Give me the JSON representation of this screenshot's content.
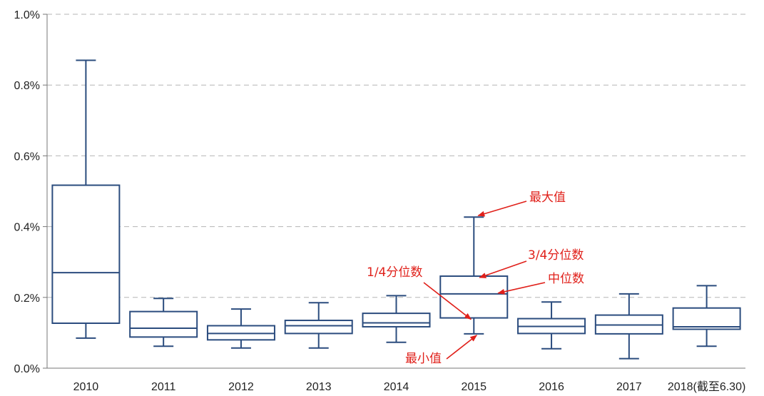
{
  "chart_data": {
    "type": "boxplot",
    "categories": [
      "2010",
      "2011",
      "2012",
      "2013",
      "2014",
      "2015",
      "2016",
      "2017",
      "2018(截至6.30)"
    ],
    "y_unit": "%",
    "ylim": [
      0,
      1.0
    ],
    "yticks": [
      0,
      0.2,
      0.4,
      0.6,
      0.8,
      1.0
    ],
    "ytick_labels": [
      "0.0%",
      "0.2%",
      "0.4%",
      "0.6%",
      "0.8%",
      "1.0%"
    ],
    "grid": true,
    "box_color": "#2b4c7e",
    "grid_color": "#b5b5b5",
    "annotation_color": "#e0201a",
    "boxes": [
      {
        "category": "2010",
        "min": 0.085,
        "q1": 0.127,
        "median": 0.27,
        "q3": 0.517,
        "max": 0.87
      },
      {
        "category": "2011",
        "min": 0.062,
        "q1": 0.088,
        "median": 0.113,
        "q3": 0.16,
        "max": 0.197
      },
      {
        "category": "2012",
        "min": 0.057,
        "q1": 0.08,
        "median": 0.098,
        "q3": 0.12,
        "max": 0.167
      },
      {
        "category": "2013",
        "min": 0.057,
        "q1": 0.098,
        "median": 0.12,
        "q3": 0.135,
        "max": 0.185
      },
      {
        "category": "2014",
        "min": 0.073,
        "q1": 0.117,
        "median": 0.128,
        "q3": 0.155,
        "max": 0.205
      },
      {
        "category": "2015",
        "min": 0.097,
        "q1": 0.142,
        "median": 0.21,
        "q3": 0.26,
        "max": 0.427
      },
      {
        "category": "2016",
        "min": 0.055,
        "q1": 0.098,
        "median": 0.118,
        "q3": 0.14,
        "max": 0.187
      },
      {
        "category": "2017",
        "min": 0.027,
        "q1": 0.097,
        "median": 0.122,
        "q3": 0.15,
        "max": 0.21
      },
      {
        "category": "2018(截至6.30)",
        "min": 0.062,
        "q1": 0.11,
        "median": 0.117,
        "q3": 0.17,
        "max": 0.233
      }
    ],
    "annotations": [
      {
        "text": "最大值",
        "points_to": "max"
      },
      {
        "text": "3/4分位数",
        "points_to": "q3"
      },
      {
        "text": "中位数",
        "points_to": "median"
      },
      {
        "text": "1/4分位数",
        "points_to": "q1"
      },
      {
        "text": "最小值",
        "points_to": "min"
      }
    ],
    "annotated_category": "2015"
  }
}
